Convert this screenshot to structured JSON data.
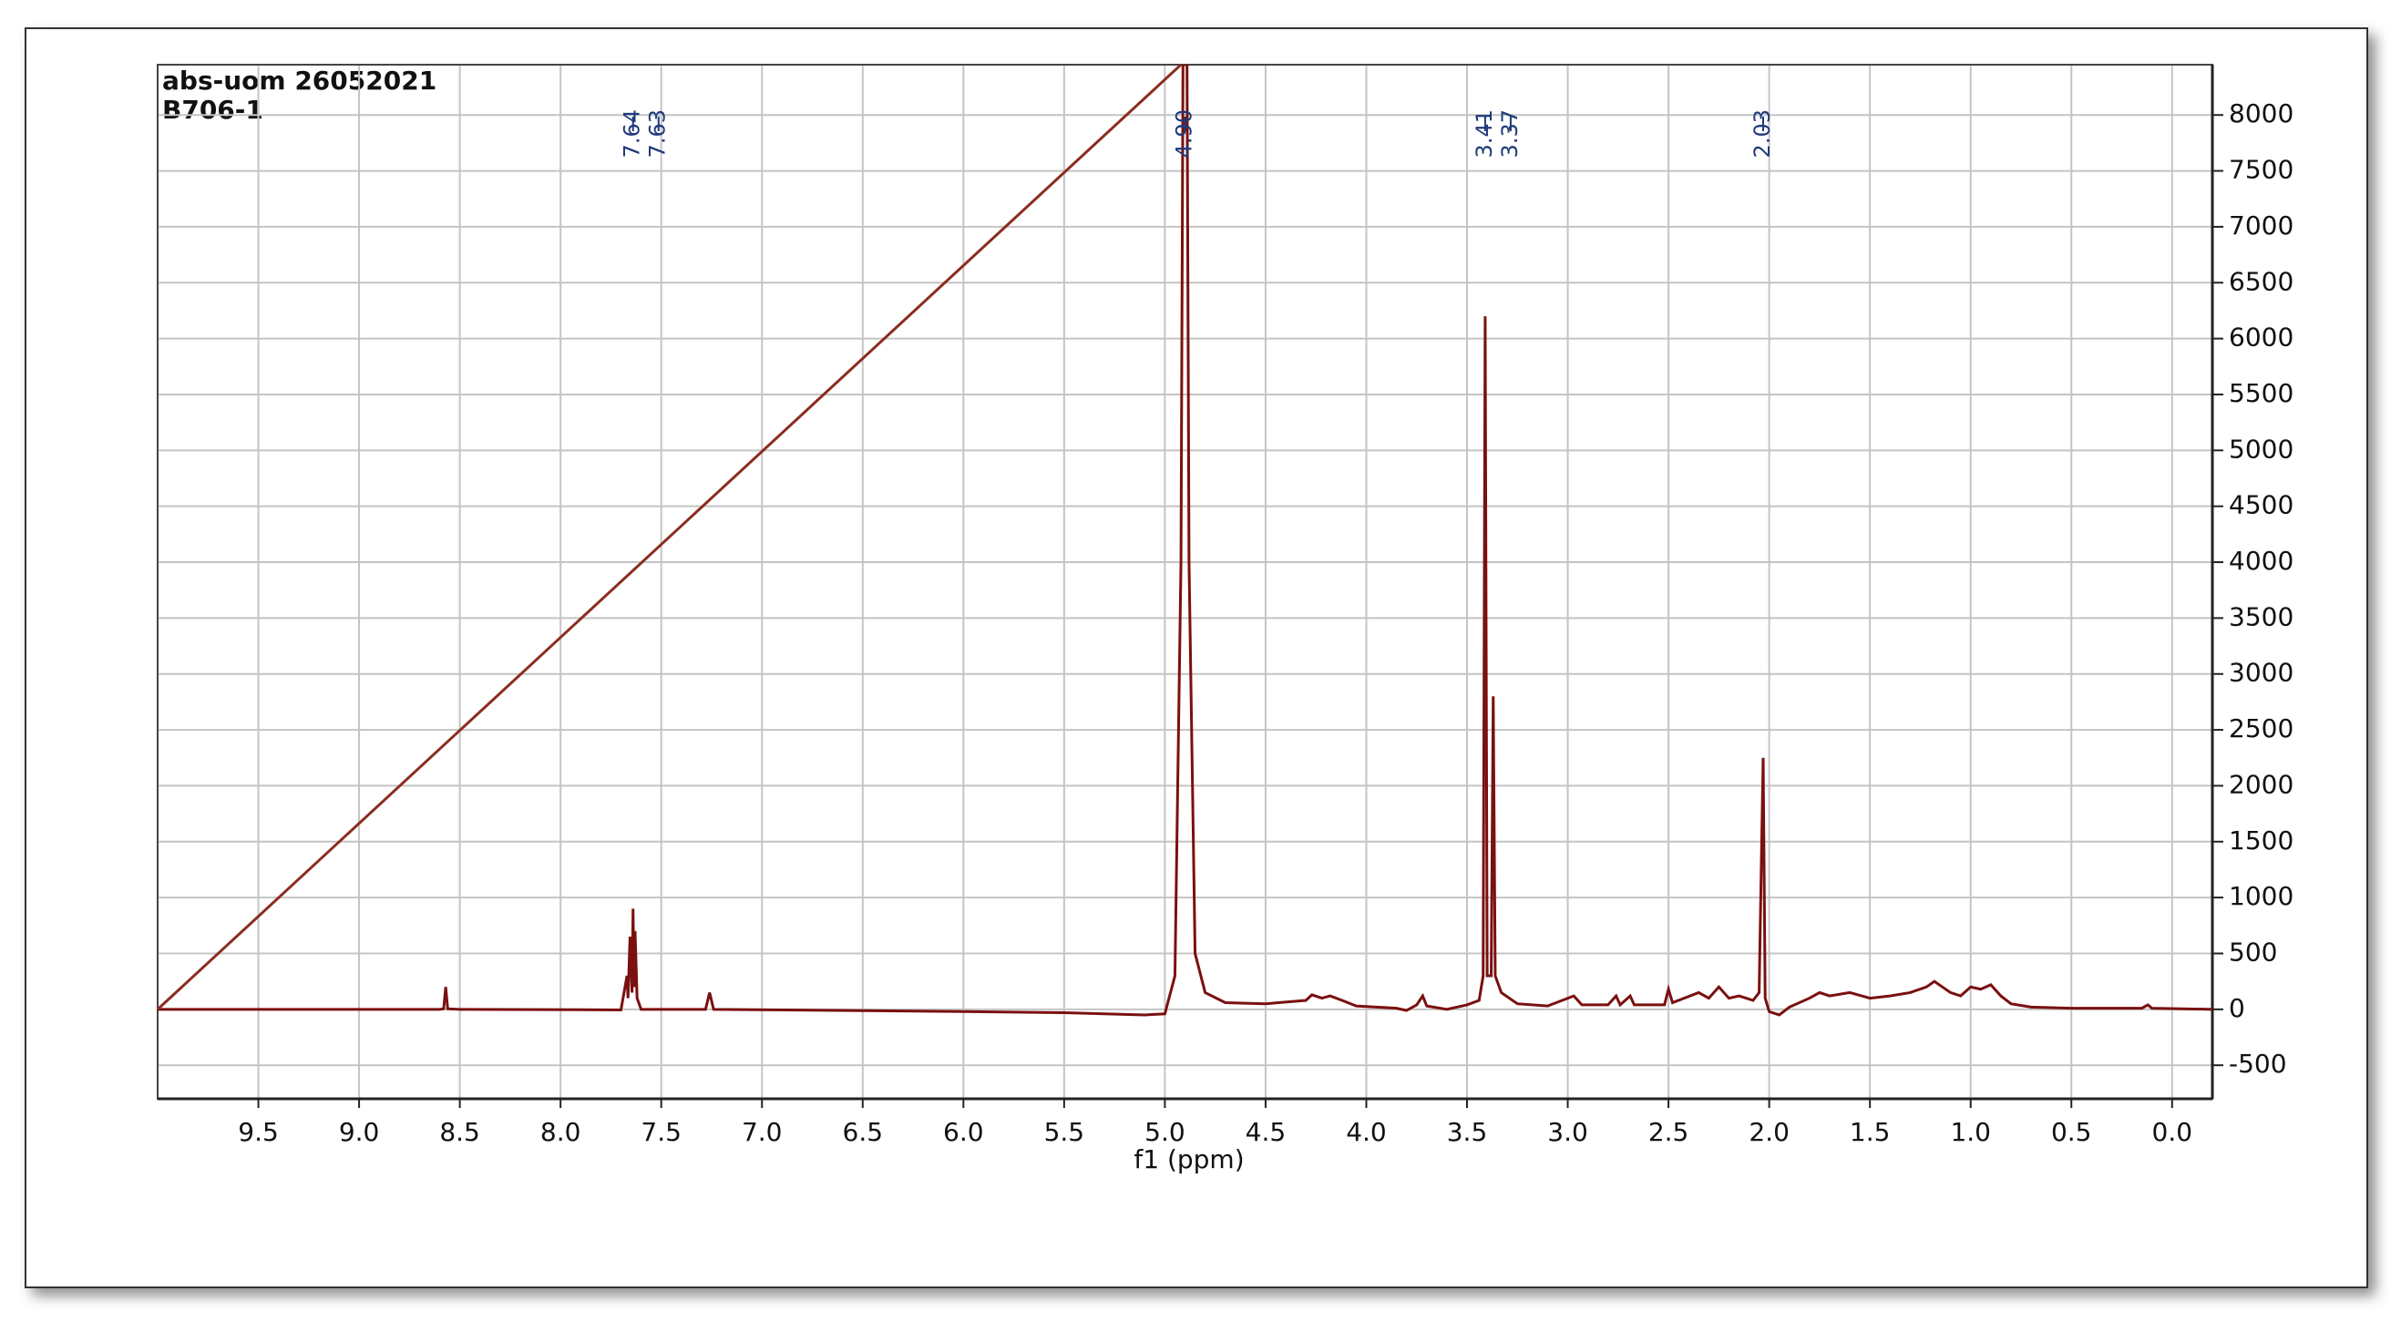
{
  "chart_data": {
    "type": "line",
    "header": [
      "abs-uom 26052021",
      "B706-1"
    ],
    "xlabel": "f1 (ppm)",
    "xlim": [
      10.0,
      -0.2
    ],
    "ylim": [
      -800,
      8450
    ],
    "xticks": [
      9.5,
      {
        "value": 9.0,
        "label": "9.0"
      },
      8.5,
      {
        "value": 8.0,
        "label": "8.0"
      },
      7.5,
      {
        "value": 7.0,
        "label": "7.0"
      },
      6.5,
      {
        "value": 6.0,
        "label": "6.0"
      },
      5.5,
      {
        "value": 5.0,
        "label": "5.0"
      },
      4.5,
      {
        "value": 4.0,
        "label": "4.0"
      },
      3.5,
      {
        "value": 3.0,
        "label": "3.0"
      },
      2.5,
      {
        "value": 2.0,
        "label": "2.0"
      },
      1.5,
      {
        "value": 1.0,
        "label": "1.0"
      },
      0.5,
      {
        "value": 0.0,
        "label": "0.0"
      }
    ],
    "yticks": [
      -500,
      0,
      500,
      1000,
      1500,
      2000,
      2500,
      3000,
      3500,
      4000,
      4500,
      5000,
      5500,
      6000,
      6500,
      7000,
      7500,
      8000
    ],
    "grid": true,
    "peak_labels": [
      7.64,
      7.63,
      {
        "value": 4.9,
        "label": "4.90"
      },
      3.41,
      3.37,
      2.03
    ],
    "peak_label_color": "#1f3a7a",
    "series": [
      {
        "color": "#7a1010",
        "x": [
          10.0,
          8.6,
          8.58,
          8.57,
          8.56,
          8.5,
          7.7,
          7.67,
          7.665,
          7.655,
          7.645,
          7.64,
          7.635,
          7.63,
          7.62,
          7.6,
          7.28,
          7.26,
          7.24,
          6.0,
          5.5,
          5.1,
          5.0,
          4.95,
          4.92,
          4.91,
          4.89,
          4.88,
          4.85,
          4.8,
          4.7,
          4.5,
          4.3,
          4.27,
          4.22,
          4.18,
          4.12,
          4.05,
          3.95,
          3.85,
          3.8,
          3.75,
          3.72,
          3.7,
          3.6,
          3.5,
          3.44,
          3.42,
          3.41,
          3.4,
          3.38,
          3.37,
          3.36,
          3.33,
          3.25,
          3.1,
          2.97,
          2.93,
          2.8,
          2.76,
          2.74,
          2.69,
          2.67,
          2.52,
          2.5,
          2.48,
          2.35,
          2.3,
          2.25,
          2.2,
          2.15,
          2.08,
          2.05,
          2.03,
          2.02,
          2.0,
          1.95,
          1.9,
          1.8,
          1.75,
          1.7,
          1.6,
          1.5,
          1.4,
          1.3,
          1.22,
          1.18,
          1.1,
          1.05,
          1.0,
          0.95,
          0.9,
          0.85,
          0.8,
          0.7,
          0.5,
          0.15,
          0.12,
          0.1,
          -0.2
        ],
        "values": [
          0,
          0,
          5,
          200,
          5,
          0,
          -5,
          300,
          100,
          650,
          150,
          900,
          200,
          700,
          100,
          0,
          0,
          150,
          0,
          -20,
          -30,
          -50,
          -40,
          300,
          4000,
          8450,
          8450,
          4000,
          500,
          150,
          60,
          50,
          80,
          130,
          100,
          120,
          80,
          30,
          20,
          10,
          -10,
          40,
          120,
          30,
          0,
          40,
          80,
          300,
          6200,
          300,
          300,
          2800,
          300,
          150,
          50,
          30,
          120,
          40,
          40,
          120,
          40,
          120,
          40,
          40,
          180,
          60,
          150,
          100,
          200,
          100,
          120,
          80,
          150,
          2250,
          100,
          -20,
          -50,
          20,
          100,
          150,
          120,
          150,
          100,
          120,
          150,
          200,
          250,
          150,
          120,
          200,
          180,
          220,
          120,
          50,
          20,
          10,
          10,
          40,
          10,
          0
        ]
      },
      {
        "color": "#8b2d1f",
        "x": [
          10.0,
          4.92
        ],
        "values": [
          0,
          8450
        ]
      }
    ]
  }
}
